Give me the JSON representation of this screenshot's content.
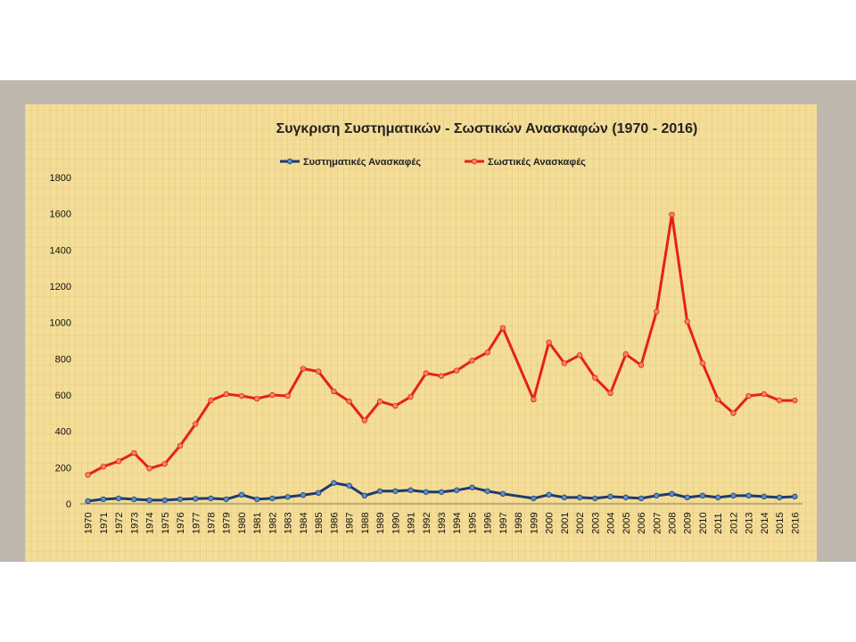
{
  "chart_data": {
    "type": "line",
    "title": "Συγκριση Συστηματικών - Σωστικών Ανασκαφών (1970 - 2016)",
    "x": [
      "1970",
      "1971",
      "1972",
      "1973",
      "1974",
      "1975",
      "1976",
      "1977",
      "1978",
      "1979",
      "1980",
      "1981",
      "1982",
      "1983",
      "1984",
      "1985",
      "1986",
      "1987",
      "1988",
      "1989",
      "1990",
      "1991",
      "1992",
      "1993",
      "1994",
      "1995",
      "1996",
      "1997",
      "1998",
      "1999",
      "2000",
      "2001",
      "2002",
      "2003",
      "2004",
      "2005",
      "2006",
      "2007",
      "2008",
      "2009",
      "2010",
      "2011",
      "2012",
      "2013",
      "2014",
      "2015",
      "2016"
    ],
    "ylim": [
      0,
      1800
    ],
    "yticks": [
      0,
      200,
      400,
      600,
      800,
      1000,
      1200,
      1400,
      1600,
      1800
    ],
    "grid": false,
    "legend_position": "top",
    "series": [
      {
        "name": "Συστηματικές Ανασκαφές",
        "color": "#1f3a6e",
        "values": [
          15,
          25,
          30,
          25,
          20,
          20,
          25,
          28,
          30,
          25,
          50,
          25,
          30,
          38,
          48,
          60,
          115,
          100,
          45,
          70,
          70,
          75,
          65,
          65,
          75,
          90,
          70,
          55,
          null,
          30,
          50,
          35,
          35,
          30,
          40,
          35,
          30,
          45,
          55,
          35,
          45,
          35,
          45,
          45,
          40,
          35,
          40
        ]
      },
      {
        "name": "Σωστικές Ανασκαφές",
        "color": "#e5211b",
        "values": [
          160,
          205,
          235,
          280,
          195,
          220,
          320,
          440,
          570,
          605,
          595,
          580,
          600,
          595,
          745,
          730,
          620,
          565,
          460,
          565,
          540,
          590,
          720,
          705,
          735,
          790,
          835,
          970,
          null,
          575,
          890,
          775,
          820,
          695,
          610,
          825,
          765,
          1060,
          1595,
          1005,
          775,
          575,
          500,
          595,
          605,
          570,
          570
        ]
      }
    ]
  }
}
